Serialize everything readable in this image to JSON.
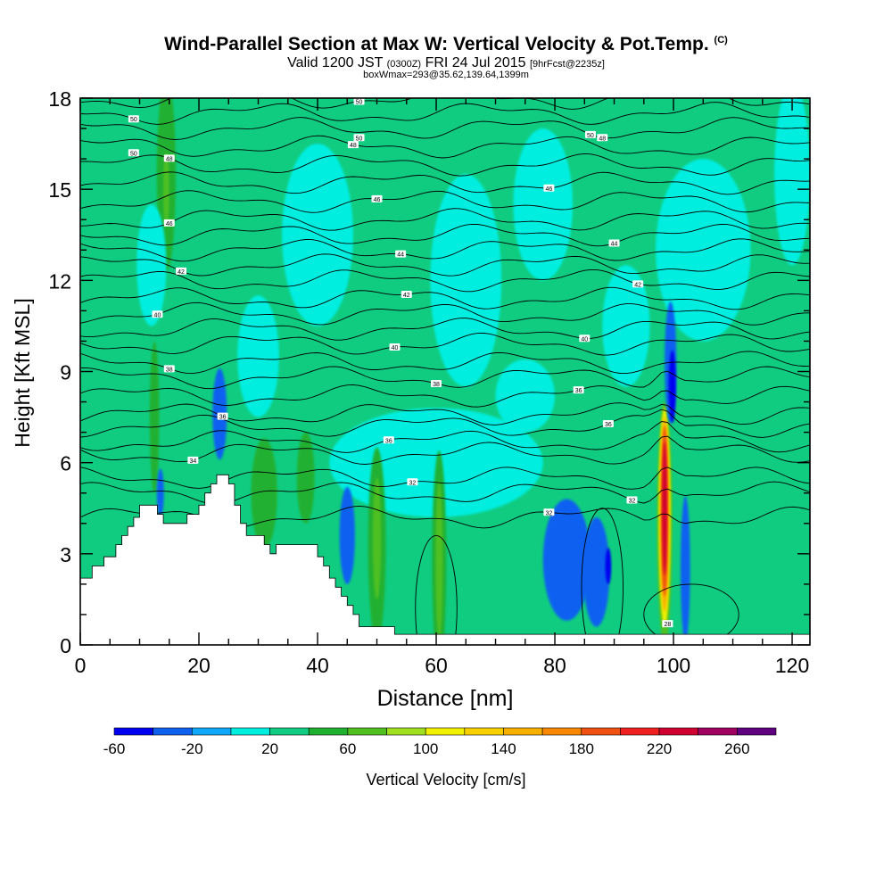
{
  "header": {
    "title_main": "Wind-Parallel Section at Max W: Vertical Velocity & Pot.Temp.",
    "title_mark": "(C)",
    "subtitle_a": "Valid 1200 JST",
    "subtitle_b": "(0300Z)",
    "subtitle_c": "FRI 24 Jul 2015",
    "subtitle_d": "[9hrFcst@2235z]",
    "subline": "boxWmax=293@35.62,139.64,1399m"
  },
  "chart_data": {
    "type": "heatmap",
    "xlabel": "Distance [nm]",
    "ylabel": "Height [Kft MSL]",
    "xlim": [
      0,
      123
    ],
    "ylim": [
      0,
      18
    ],
    "x_ticks": [
      0,
      20,
      40,
      60,
      80,
      100,
      120
    ],
    "y_ticks": [
      0,
      3,
      6,
      9,
      12,
      15,
      18
    ],
    "colorbar": {
      "label": "Vertical Velocity [cm/s]",
      "tick_values": [
        -60,
        -20,
        20,
        60,
        100,
        140,
        180,
        220,
        260
      ],
      "bin_edges": [
        -60,
        -40,
        -20,
        0,
        20,
        40,
        60,
        80,
        100,
        120,
        140,
        160,
        180,
        200,
        220,
        240,
        260,
        280
      ],
      "colors": [
        "#0000f0",
        "#1060f0",
        "#10a8f8",
        "#00eee0",
        "#10cc80",
        "#20b030",
        "#50c020",
        "#a0e020",
        "#f0f000",
        "#f8d000",
        "#f8b000",
        "#f88800",
        "#f05010",
        "#f02020",
        "#d00030",
        "#a00060",
        "#600080"
      ]
    },
    "background_level": 20,
    "terrain": [
      [
        0,
        2.2
      ],
      [
        2,
        2.2
      ],
      [
        2,
        2.6
      ],
      [
        4,
        2.6
      ],
      [
        4,
        2.9
      ],
      [
        6,
        2.9
      ],
      [
        6,
        3.3
      ],
      [
        7,
        3.3
      ],
      [
        7,
        3.6
      ],
      [
        8,
        3.6
      ],
      [
        8,
        3.9
      ],
      [
        9,
        3.9
      ],
      [
        9,
        4.2
      ],
      [
        10,
        4.2
      ],
      [
        10,
        4.6
      ],
      [
        13,
        4.6
      ],
      [
        13,
        4.3
      ],
      [
        14,
        4.3
      ],
      [
        14,
        4.0
      ],
      [
        18,
        4.0
      ],
      [
        18,
        4.3
      ],
      [
        20,
        4.3
      ],
      [
        20,
        4.6
      ],
      [
        21,
        4.6
      ],
      [
        21,
        5.0
      ],
      [
        22,
        5.0
      ],
      [
        22,
        5.3
      ],
      [
        23,
        5.3
      ],
      [
        23,
        5.6
      ],
      [
        25,
        5.6
      ],
      [
        25,
        5.3
      ],
      [
        26,
        5.3
      ],
      [
        26,
        4.6
      ],
      [
        27,
        4.6
      ],
      [
        27,
        4.0
      ],
      [
        28,
        4.0
      ],
      [
        28,
        3.6
      ],
      [
        31,
        3.6
      ],
      [
        31,
        3.3
      ],
      [
        32,
        3.3
      ],
      [
        32,
        3.0
      ],
      [
        33,
        3.0
      ],
      [
        33,
        3.3
      ],
      [
        40,
        3.3
      ],
      [
        40,
        2.9
      ],
      [
        41,
        2.9
      ],
      [
        41,
        2.6
      ],
      [
        42,
        2.6
      ],
      [
        42,
        2.2
      ],
      [
        43,
        2.2
      ],
      [
        43,
        1.9
      ],
      [
        44,
        1.9
      ],
      [
        44,
        1.6
      ],
      [
        45,
        1.6
      ],
      [
        45,
        1.3
      ],
      [
        46,
        1.3
      ],
      [
        46,
        1.0
      ],
      [
        47,
        1.0
      ],
      [
        47,
        0.6
      ],
      [
        53,
        0.6
      ],
      [
        53,
        0.35
      ],
      [
        123,
        0.35
      ]
    ],
    "w_cells": [
      {
        "x": 98.5,
        "y": 4.0,
        "rx": 1.3,
        "ry": 4.0,
        "w": 60
      },
      {
        "x": 98.5,
        "y": 4.2,
        "rx": 1.0,
        "ry": 3.6,
        "w": 100
      },
      {
        "x": 98.5,
        "y": 4.3,
        "rx": 0.8,
        "ry": 3.2,
        "w": 140
      },
      {
        "x": 98.5,
        "y": 4.4,
        "rx": 0.6,
        "ry": 2.8,
        "w": 180
      },
      {
        "x": 98.5,
        "y": 4.5,
        "rx": 0.4,
        "ry": 2.2,
        "w": 220
      },
      {
        "x": 99.5,
        "y": 9.3,
        "rx": 1.0,
        "ry": 2.0,
        "w": -40
      },
      {
        "x": 99.8,
        "y": 8.5,
        "rx": 0.6,
        "ry": 1.2,
        "w": -60
      },
      {
        "x": 102,
        "y": 2.5,
        "rx": 0.8,
        "ry": 2.4,
        "w": -40
      },
      {
        "x": 82,
        "y": 2.8,
        "rx": 4.0,
        "ry": 2.0,
        "w": -40
      },
      {
        "x": 87,
        "y": 2.4,
        "rx": 2.2,
        "ry": 1.8,
        "w": -40
      },
      {
        "x": 89,
        "y": 2.6,
        "rx": 0.5,
        "ry": 0.6,
        "w": -60
      },
      {
        "x": 45,
        "y": 3.6,
        "rx": 1.3,
        "ry": 1.6,
        "w": -40
      },
      {
        "x": 60.5,
        "y": 2.8,
        "rx": 1.2,
        "ry": 3.6,
        "w": 40
      },
      {
        "x": 60.5,
        "y": 2.8,
        "rx": 0.6,
        "ry": 2.6,
        "w": 60
      },
      {
        "x": 50,
        "y": 3.3,
        "rx": 1.5,
        "ry": 3.2,
        "w": 40
      },
      {
        "x": 50,
        "y": 3.5,
        "rx": 0.7,
        "ry": 2.0,
        "w": 60
      },
      {
        "x": 31,
        "y": 5.0,
        "rx": 2.2,
        "ry": 1.8,
        "w": 40
      },
      {
        "x": 38,
        "y": 5.5,
        "rx": 1.5,
        "ry": 1.5,
        "w": 40
      },
      {
        "x": 14.5,
        "y": 15.5,
        "rx": 1.6,
        "ry": 3.2,
        "w": 40
      },
      {
        "x": 14.5,
        "y": 15.0,
        "rx": 0.5,
        "ry": 1.2,
        "w": 60
      },
      {
        "x": 12.5,
        "y": 7.5,
        "rx": 0.8,
        "ry": 2.5,
        "w": 40
      },
      {
        "x": 23.5,
        "y": 7.6,
        "rx": 1.2,
        "ry": 1.5,
        "w": -40
      },
      {
        "x": 13.5,
        "y": 5.0,
        "rx": 0.6,
        "ry": 0.8,
        "w": -40
      },
      {
        "x": 12,
        "y": 12.5,
        "rx": 2.5,
        "ry": 2.0,
        "w": 0
      },
      {
        "x": 40,
        "y": 13.5,
        "rx": 6.0,
        "ry": 3.0,
        "w": 0
      },
      {
        "x": 65,
        "y": 12.0,
        "rx": 6.0,
        "ry": 3.5,
        "w": 0
      },
      {
        "x": 78,
        "y": 14.5,
        "rx": 5.0,
        "ry": 2.5,
        "w": 0
      },
      {
        "x": 105,
        "y": 13.0,
        "rx": 8.0,
        "ry": 3.0,
        "w": 0
      },
      {
        "x": 60,
        "y": 6.0,
        "rx": 18.0,
        "ry": 1.8,
        "w": 0
      },
      {
        "x": 30,
        "y": 9.5,
        "rx": 3.5,
        "ry": 2.0,
        "w": 0
      },
      {
        "x": 120,
        "y": 15.5,
        "rx": 3.0,
        "ry": 3.0,
        "w": 0
      },
      {
        "x": 75,
        "y": 8.2,
        "rx": 5.0,
        "ry": 1.2,
        "w": 0
      },
      {
        "x": 92,
        "y": 10.5,
        "rx": 4.0,
        "ry": 2.0,
        "w": 0
      }
    ],
    "theta_contours": [
      {
        "y0": 4.2,
        "label": "32",
        "lx": 79
      },
      {
        "y0": 5.0,
        "label": "32",
        "lx": 93
      },
      {
        "y0": 5.5,
        "label": "32",
        "lx": 56
      },
      {
        "y0": 6.3,
        "label": "34",
        "lx": 19
      },
      {
        "y0": 6.7,
        "label": "36",
        "lx": 52
      },
      {
        "y0": 7.2,
        "label": "36",
        "lx": 89
      },
      {
        "y0": 7.6,
        "label": "36",
        "lx": 24
      },
      {
        "y0": 8.2,
        "label": "36",
        "lx": 84
      },
      {
        "y0": 8.8,
        "label": "38",
        "lx": 60
      },
      {
        "y0": 9.3,
        "label": "38",
        "lx": 15
      },
      {
        "y0": 9.9,
        "label": "40",
        "lx": 53
      },
      {
        "y0": 10.4,
        "label": "40",
        "lx": 85
      },
      {
        "y0": 10.9,
        "label": "40",
        "lx": 13
      },
      {
        "y0": 11.4,
        "label": "42",
        "lx": 55
      },
      {
        "y0": 12.0,
        "label": "42",
        "lx": 94
      },
      {
        "y0": 12.5,
        "label": "42",
        "lx": 17
      },
      {
        "y0": 13.0,
        "label": "44",
        "lx": 54
      },
      {
        "y0": 13.5,
        "label": "44",
        "lx": 90
      },
      {
        "y0": 14.0,
        "label": "46",
        "lx": 15
      },
      {
        "y0": 14.6,
        "label": "46",
        "lx": 50
      },
      {
        "y0": 15.2,
        "label": "46",
        "lx": 79
      },
      {
        "y0": 15.8,
        "label": "48",
        "lx": 15
      },
      {
        "y0": 16.4,
        "label": "48",
        "lx": 46
      },
      {
        "y0": 17.0,
        "label": "48",
        "lx": 88
      },
      {
        "y0": 17.5,
        "label": "50",
        "lx": 9
      },
      {
        "y0": 18.0,
        "label": "50",
        "lx": 47
      }
    ],
    "mid_labels": [
      {
        "label": "50",
        "x": 47,
        "y": 16.7
      },
      {
        "label": "50",
        "x": 86,
        "y": 16.8
      },
      {
        "label": "50",
        "x": 9,
        "y": 16.2
      }
    ],
    "low_contours_label": "28",
    "low_label_pos": [
      99,
      0.7
    ]
  }
}
